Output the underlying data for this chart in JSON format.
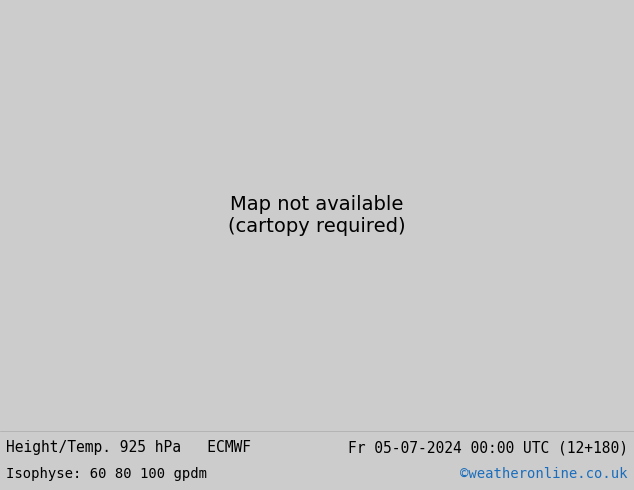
{
  "title_left": "Height/Temp. 925 hPa   ECMWF",
  "title_right": "Fr 05-07-2024 00:00 UTC (12+180)",
  "subtitle_left": "Isophyse: 60 80 100 gpdm",
  "subtitle_right": "©weatheronline.co.uk",
  "subtitle_right_color": "#1a6ebd",
  "text_color": "#000000",
  "font_size_title": 10.5,
  "font_size_subtitle": 10,
  "bottom_bg": "#cccccc",
  "map_land_color": "#b5eda0",
  "map_highland_color": "#e8e8e8",
  "map_sea_color": "#e0efe0",
  "border_color": "#888888",
  "fig_width": 6.34,
  "fig_height": 4.9,
  "dpi": 100
}
